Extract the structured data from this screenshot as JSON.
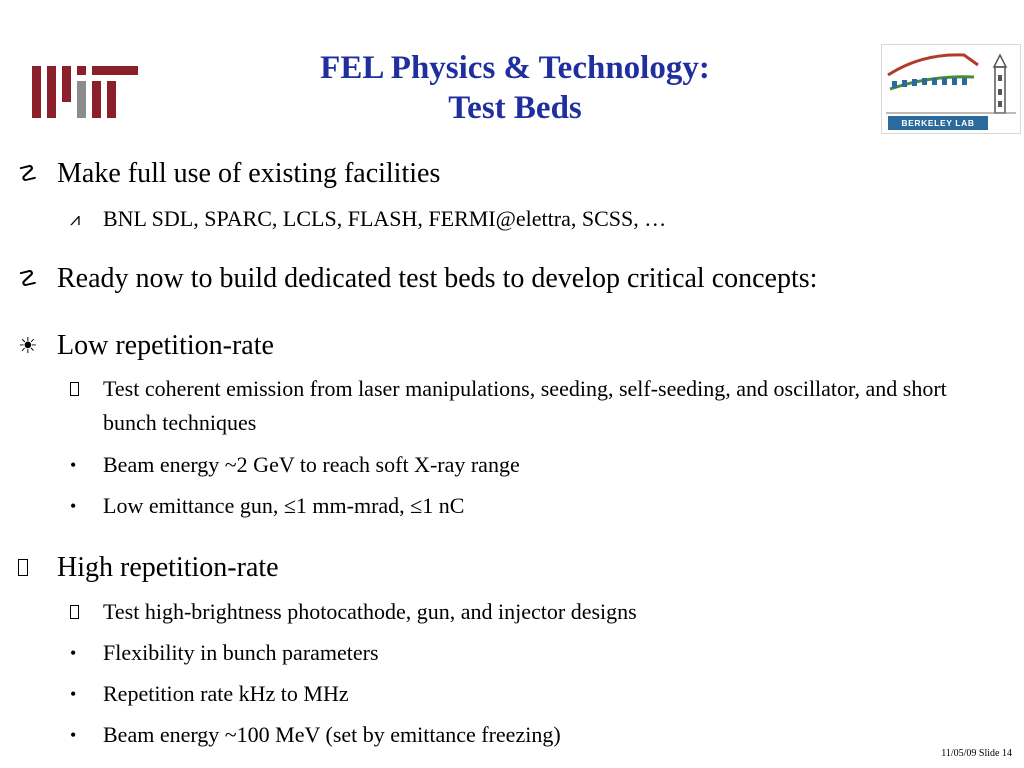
{
  "title": {
    "line1": "FEL Physics & Technology:",
    "line2": "Test Beds"
  },
  "logos": {
    "left_icon": "mit-logo-icon",
    "right_icon": "berkeley-lab-logo-icon",
    "right_text": "BERKELEY LAB"
  },
  "bullets": {
    "b1": {
      "glyph": "☡",
      "text": "Make full use of existing facilities"
    },
    "b1_1": {
      "glyph": "⩘",
      "text": "BNL SDL, SPARC, LCLS, FLASH, FERMI@elettra, SCSS, …"
    },
    "b2": {
      "glyph": "☡",
      "text": "Ready now to build dedicated test beds to develop critical concepts:"
    },
    "b3": {
      "glyph": "☀",
      "text": "Low repetition-rate"
    },
    "b3_1": {
      "text": "Test coherent emission from laser manipulations, seeding, self-seeding, and oscillator, and short bunch techniques"
    },
    "b3_2": {
      "glyph": "•",
      "text": "Beam energy ~2 GeV to reach soft X-ray range"
    },
    "b3_3": {
      "glyph": "•",
      "text": "Low emittance gun, ≤1 mm-mrad, ≤1 nC"
    },
    "b4": {
      "text": "High repetition-rate"
    },
    "b4_1": {
      "text": "Test high-brightness photocathode, gun, and injector designs"
    },
    "b4_2": {
      "glyph": "•",
      "text": "Flexibility in bunch parameters"
    },
    "b4_3": {
      "glyph": "•",
      "text": "Repetition rate kHz to MHz"
    },
    "b4_4": {
      "glyph": "•",
      "text": "Beam energy ~100 MeV (set by emittance freezing)"
    }
  },
  "footer": {
    "text": "11/05/09 Slide 14"
  },
  "colors": {
    "title": "#1f2f9f",
    "mit_red": "#8b1f2a",
    "mit_gray": "#8c8c8c",
    "berkeley_blue": "#2a6a9c",
    "berkeley_green": "#4a8a3a"
  }
}
